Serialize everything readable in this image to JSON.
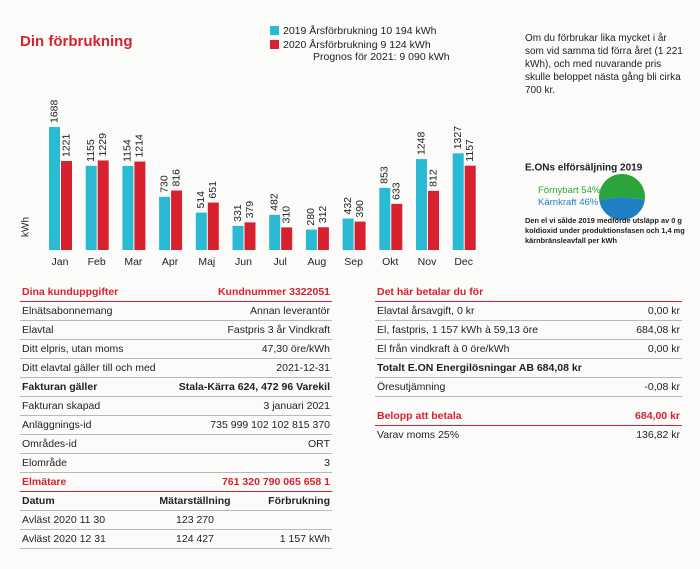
{
  "chart_data": [
    {
      "type": "bar",
      "title": "Din förbrukning",
      "subtitle": "Prognos för 2021: 9 090 kWh",
      "y_label": "kWh",
      "categories": [
        "Jan",
        "Feb",
        "Mar",
        "Apr",
        "Maj",
        "Jun",
        "Jul",
        "Aug",
        "Sep",
        "Okt",
        "Nov",
        "Dec"
      ],
      "series": [
        {
          "name": "2019 Årsförbrukning 10 194 kWh",
          "color": "#2bbad3",
          "values": [
            1688,
            1155,
            1154,
            730,
            514,
            331,
            482,
            280,
            432,
            853,
            1248,
            1327
          ]
        },
        {
          "name": "2020 Årsförbrukning 9 124 kWh",
          "color": "#d7212e",
          "values": [
            1221,
            1229,
            1214,
            816,
            651,
            379,
            310,
            312,
            390,
            633,
            812,
            1157
          ]
        }
      ]
    },
    {
      "type": "pie",
      "title": "E.ONs elförsäljning 2019",
      "categories": [
        "Förnybart",
        "Kärnkraft"
      ],
      "values": [
        54,
        46
      ],
      "value_labels": [
        "54%",
        "46%"
      ],
      "colors": [
        "#2aa43b",
        "#1f7fc3"
      ],
      "note": "Den el vi sålde 2019 medförde utsläpp av 0 g koldioxid under produktionsfasen och 1,4 mg kärnbränsleavfall per kWh"
    }
  ],
  "forecast_note": "Om du förbrukar lika mycket i år som vid samma tid förra året (1 221 kWh), och med nuvarande pris skulle beloppet nästa gång bli cirka  700 kr.",
  "customer": {
    "title": "Dina kunduppgifter",
    "number": "Kundnummer 3322051",
    "rows": [
      [
        "Elnätsabonnemang",
        "Annan leverantör"
      ],
      [
        "Elavtal",
        "Fastpris 3 år Vindkraft"
      ],
      [
        "Ditt elpris, utan moms",
        "47,30 öre/kWh"
      ],
      [
        "Ditt elavtal gäller till och med",
        "2021-12-31"
      ],
      [
        "Fakturan gäller",
        "Stala-Kärra 624, 472 96 Varekil"
      ],
      [
        "Fakturan skapad",
        "3 januari 2021"
      ],
      [
        "Anläggnings-id",
        "735 999 102 102 815 370"
      ],
      [
        "Områdes-id",
        "ORT"
      ],
      [
        "Elområde",
        "3"
      ]
    ]
  },
  "meter": {
    "title": "Elmätare",
    "number": "761 320 790 065 658 1",
    "header": [
      "Datum",
      "Mätarställning",
      "Förbrukning"
    ],
    "rows": [
      [
        "Avläst 2020 11 30",
        "123 270"
      ],
      [
        "Avläst 2020 12 31",
        "124 427",
        "1 157 kWh"
      ]
    ]
  },
  "payment": {
    "title": "Det här betalar du för",
    "rows": [
      [
        "Elavtal årsavgift, 0 kr",
        "0,00 kr"
      ],
      [
        "El, fastpris, 1 157 kWh à 59,13 öre",
        "684,08 kr"
      ],
      [
        "El från vindkraft à 0 öre/kWh",
        "0,00 kr"
      ],
      [
        "Totalt E.ON Energilösningar AB 684,08 kr"
      ],
      [
        "Öresutjämning",
        "-0,08 kr"
      ]
    ],
    "total_label": "Belopp att betala",
    "total": "684,00 kr",
    "vat_label": "Varav moms 25%",
    "vat": "136,82 kr"
  }
}
